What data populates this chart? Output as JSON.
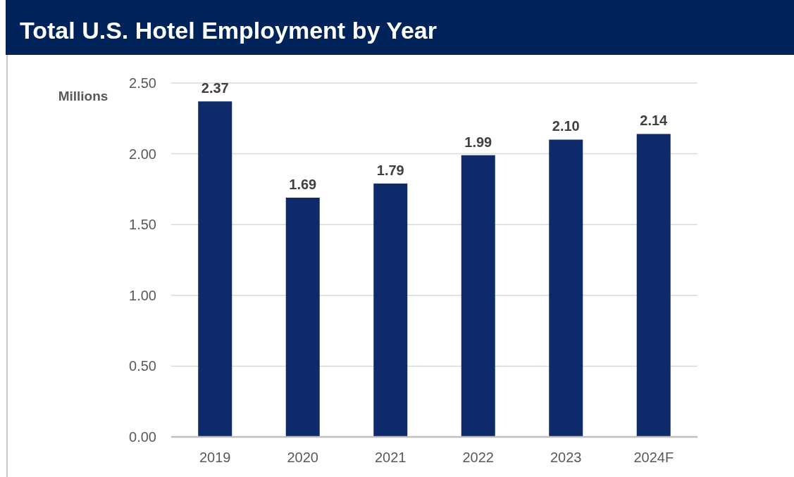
{
  "chart_data": {
    "type": "bar",
    "title": "Total U.S. Hotel Employment by Year",
    "ylabel": "Millions",
    "categories": [
      "2019",
      "2020",
      "2021",
      "2022",
      "2023",
      "2024F"
    ],
    "values": [
      2.37,
      1.69,
      1.79,
      1.99,
      2.1,
      2.14
    ],
    "value_labels": [
      "2.37",
      "1.69",
      "1.79",
      "1.99",
      "2.10",
      "2.14"
    ],
    "color": "#0f2a6b",
    "ylim": [
      0,
      2.5
    ],
    "yticks": [
      {
        "value": 0,
        "label": "0.00"
      },
      {
        "value": 0.5,
        "label": "0.50"
      },
      {
        "value": 1,
        "label": "1.00"
      },
      {
        "value": 1.5,
        "label": "1.50"
      },
      {
        "value": 2,
        "label": "2.00"
      },
      {
        "value": 2.5,
        "label": "2.50"
      }
    ],
    "grid": "y"
  }
}
